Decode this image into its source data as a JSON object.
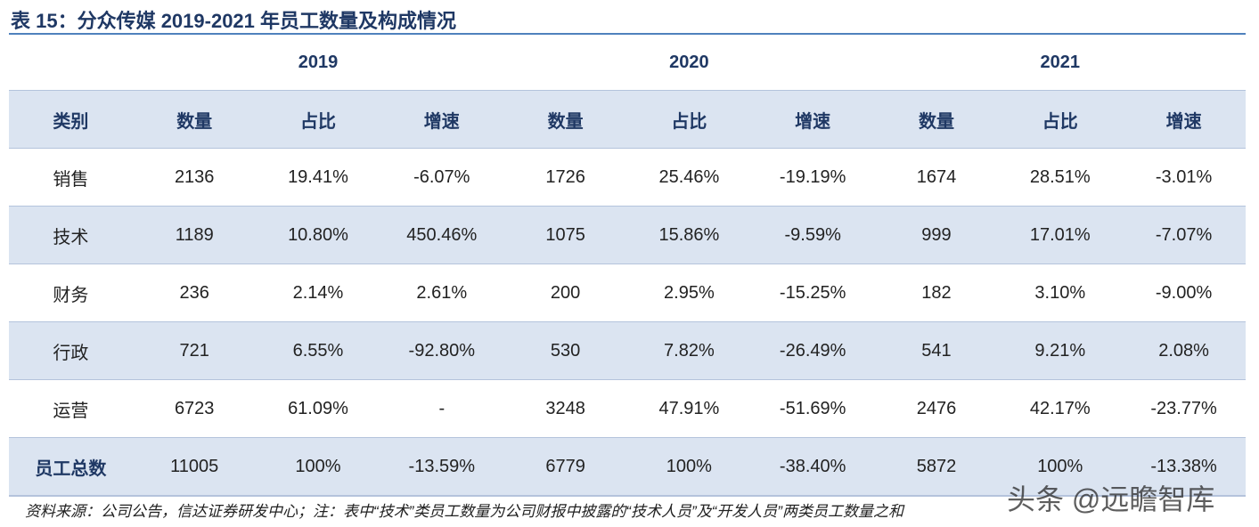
{
  "title": "表 15：分众传媒 2019-2021 年员工数量及构成情况",
  "table": {
    "years": [
      "2019",
      "2020",
      "2021"
    ],
    "header": [
      "类别",
      "数量",
      "占比",
      "增速",
      "数量",
      "占比",
      "增速",
      "数量",
      "占比",
      "增速"
    ],
    "rows": [
      [
        "销售",
        "2136",
        "19.41%",
        "-6.07%",
        "1726",
        "25.46%",
        "-19.19%",
        "1674",
        "28.51%",
        "-3.01%"
      ],
      [
        "技术",
        "1189",
        "10.80%",
        "450.46%",
        "1075",
        "15.86%",
        "-9.59%",
        "999",
        "17.01%",
        "-7.07%"
      ],
      [
        "财务",
        "236",
        "2.14%",
        "2.61%",
        "200",
        "2.95%",
        "-15.25%",
        "182",
        "3.10%",
        "-9.00%"
      ],
      [
        "行政",
        "721",
        "6.55%",
        "-92.80%",
        "530",
        "7.82%",
        "-26.49%",
        "541",
        "9.21%",
        "2.08%"
      ],
      [
        "运营",
        "6723",
        "61.09%",
        "-",
        "3248",
        "47.91%",
        "-51.69%",
        "2476",
        "42.17%",
        "-23.77%"
      ],
      [
        "员工总数",
        "11005",
        "100%",
        "-13.59%",
        "6779",
        "100%",
        "-38.40%",
        "5872",
        "100%",
        "-13.38%"
      ]
    ]
  },
  "source": "资料来源：公司公告，信达证券研发中心；注：表中“技术”类员工数量为公司财报中披露的“技术人员”及“开发人员”两类员工数量之和",
  "watermark": "头条 @远瞻智库"
}
